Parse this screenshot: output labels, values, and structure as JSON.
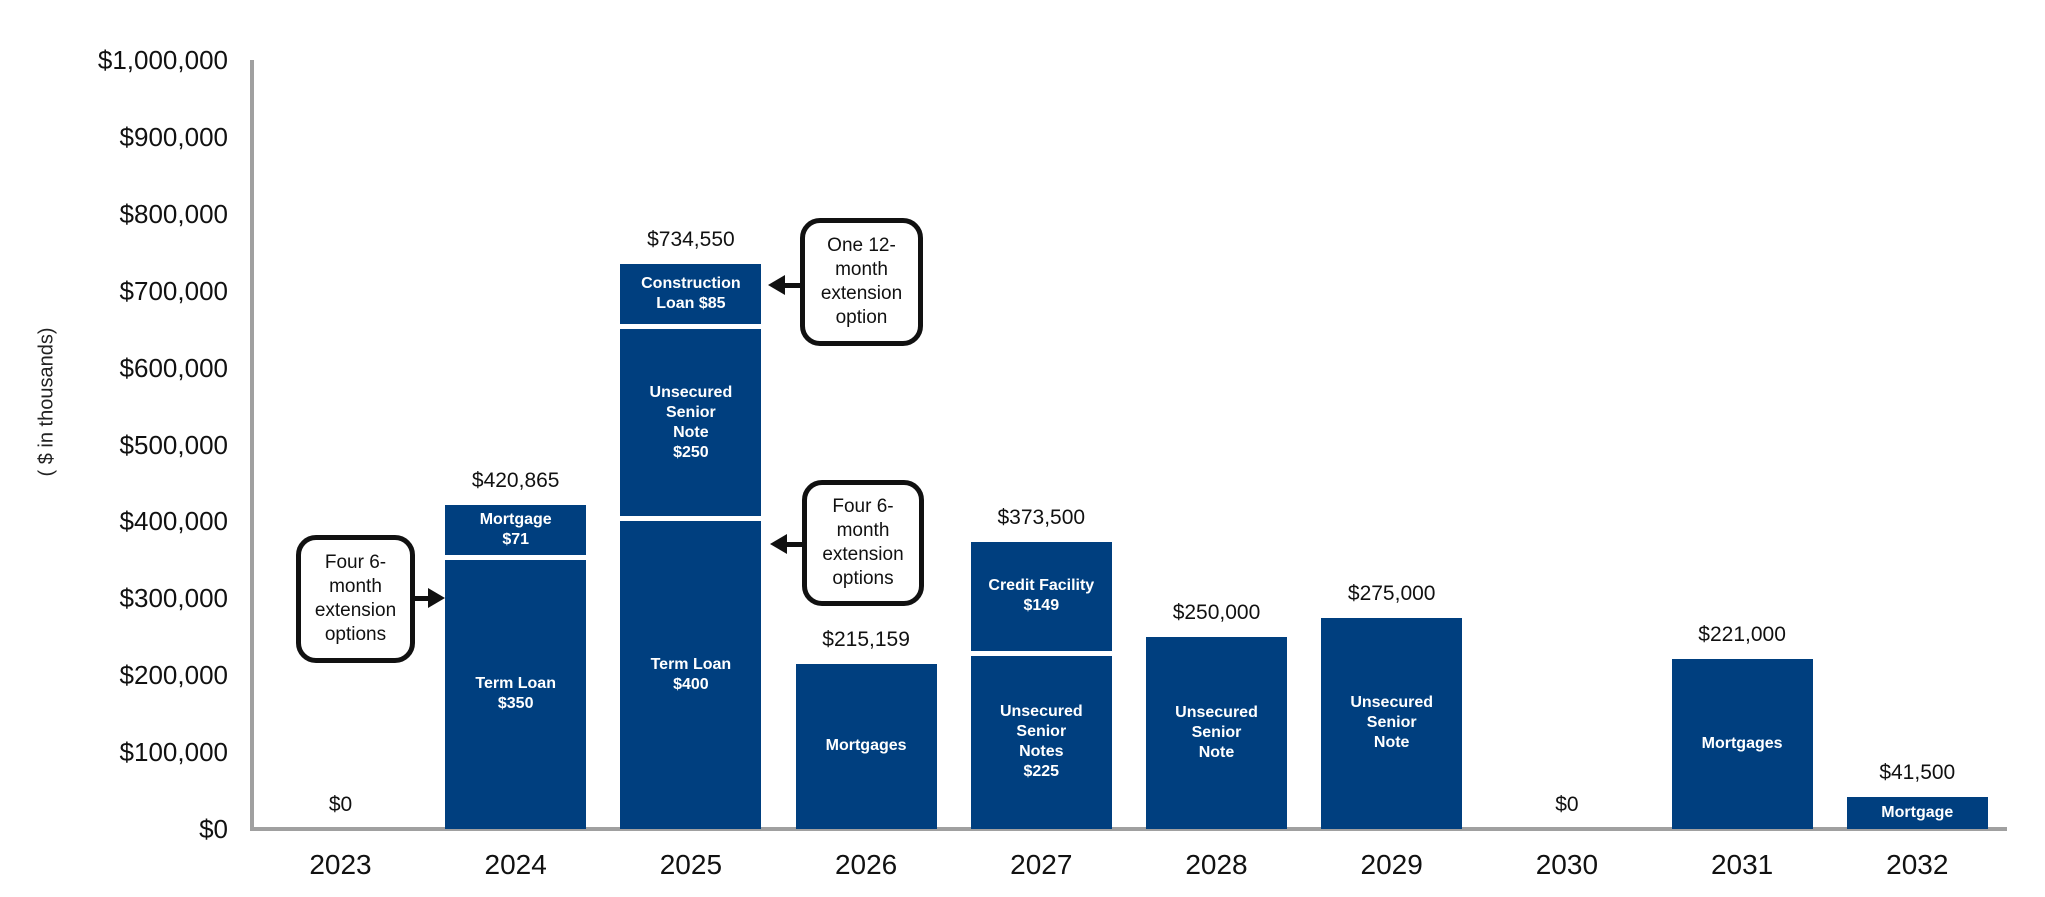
{
  "chart_data": {
    "type": "bar",
    "stacked": true,
    "title": "",
    "xlabel": "",
    "ylabel": "( $ in thousands)",
    "ylim": [
      0,
      1000000
    ],
    "yticks": [
      "$0",
      "$100,000",
      "$200,000",
      "$300,000",
      "$400,000",
      "$500,000",
      "$600,000",
      "$700,000",
      "$800,000",
      "$900,000",
      "$1,000,000"
    ],
    "grid": false,
    "legend": null,
    "categories": [
      "2023",
      "2024",
      "2025",
      "2026",
      "2027",
      "2028",
      "2029",
      "2030",
      "2031",
      "2032"
    ],
    "totals": [
      0,
      420865,
      734550,
      215159,
      373500,
      250000,
      275000,
      0,
      221000,
      41500
    ],
    "total_labels": [
      "$0",
      "$420,865",
      "$734,550",
      "$215,159",
      "$373,500",
      "$250,000",
      "$275,000",
      "$0",
      "$221,000",
      "$41,500"
    ],
    "bars": [
      {
        "year": "2023",
        "segments": []
      },
      {
        "year": "2024",
        "segments": [
          {
            "label": "Term Loan\n$350",
            "value": 350000
          },
          {
            "label": "Mortgage\n$71",
            "value": 70865
          }
        ]
      },
      {
        "year": "2025",
        "segments": [
          {
            "label": "Term Loan\n$400",
            "value": 400000
          },
          {
            "label": "Unsecured\nSenior\nNote\n$250",
            "value": 250000
          },
          {
            "label": "Construction\nLoan $85",
            "value": 84550
          }
        ]
      },
      {
        "year": "2026",
        "segments": [
          {
            "label": "Mortgages",
            "value": 215159
          }
        ]
      },
      {
        "year": "2027",
        "segments": [
          {
            "label": "Unsecured\nSenior\nNotes\n$225",
            "value": 225000
          },
          {
            "label": "Credit Facility\n$149",
            "value": 148500
          }
        ]
      },
      {
        "year": "2028",
        "segments": [
          {
            "label": "Unsecured\nSenior\nNote",
            "value": 250000
          }
        ]
      },
      {
        "year": "2029",
        "segments": [
          {
            "label": "Unsecured\nSenior\nNote",
            "value": 275000
          }
        ]
      },
      {
        "year": "2030",
        "segments": []
      },
      {
        "year": "2031",
        "segments": [
          {
            "label": "Mortgages",
            "value": 221000
          }
        ]
      },
      {
        "year": "2032",
        "segments": [
          {
            "label": "Mortgage",
            "value": 41500
          }
        ]
      }
    ],
    "annotations": [
      {
        "text": "Four 6-\nmonth\nextension\noptions",
        "points_to": "2024 Term Loan $350"
      },
      {
        "text": "One 12-\nmonth\nextension\noption",
        "points_to": "2025 Construction Loan $85"
      },
      {
        "text": "Four 6-\nmonth\nextension\noptions",
        "points_to": "2025 Term Loan $400"
      }
    ],
    "colors": {
      "bar": "#003f7f",
      "axis": "#a0a0a0",
      "text": "#111111"
    }
  }
}
